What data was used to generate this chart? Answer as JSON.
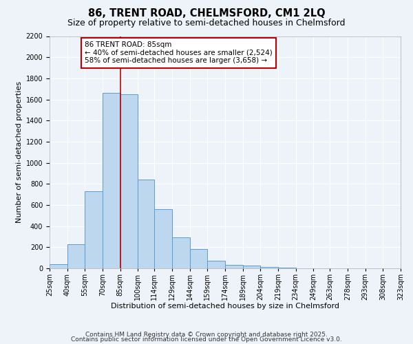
{
  "title": "86, TRENT ROAD, CHELMSFORD, CM1 2LQ",
  "subtitle": "Size of property relative to semi-detached houses in Chelmsford",
  "xlabel": "Distribution of semi-detached houses by size in Chelmsford",
  "ylabel": "Number of semi-detached properties",
  "bin_labels": [
    "25sqm",
    "40sqm",
    "55sqm",
    "70sqm",
    "85sqm",
    "100sqm",
    "114sqm",
    "129sqm",
    "144sqm",
    "159sqm",
    "174sqm",
    "189sqm",
    "204sqm",
    "219sqm",
    "234sqm",
    "249sqm",
    "263sqm",
    "278sqm",
    "293sqm",
    "308sqm",
    "323sqm"
  ],
  "bin_edges": [
    25,
    40,
    55,
    70,
    85,
    100,
    114,
    129,
    144,
    159,
    174,
    189,
    204,
    219,
    234,
    249,
    263,
    278,
    293,
    308,
    323
  ],
  "bar_heights": [
    40,
    225,
    730,
    1665,
    1650,
    840,
    560,
    295,
    180,
    70,
    30,
    25,
    10,
    5,
    0,
    0,
    0,
    0,
    0,
    0
  ],
  "bar_color": "#bdd7ee",
  "bar_edgecolor": "#5b9bd5",
  "property_value": 85,
  "marker_line_color": "#c00000",
  "annotation_line1": "86 TRENT ROAD: 85sqm",
  "annotation_line2": "← 40% of semi-detached houses are smaller (2,524)",
  "annotation_line3": "58% of semi-detached houses are larger (3,658) →",
  "annotation_box_edgecolor": "#c00000",
  "annotation_box_facecolor": "#ffffff",
  "ylim": [
    0,
    2200
  ],
  "yticks": [
    0,
    200,
    400,
    600,
    800,
    1000,
    1200,
    1400,
    1600,
    1800,
    2000,
    2200
  ],
  "footer_line1": "Contains HM Land Registry data © Crown copyright and database right 2025.",
  "footer_line2": "Contains public sector information licensed under the Open Government Licence v3.0.",
  "background_color": "#eef2f9",
  "grid_color": "#ffffff",
  "title_fontsize": 10.5,
  "subtitle_fontsize": 9,
  "axis_label_fontsize": 8,
  "tick_fontsize": 7,
  "annotation_fontsize": 7.5,
  "footer_fontsize": 6.5
}
